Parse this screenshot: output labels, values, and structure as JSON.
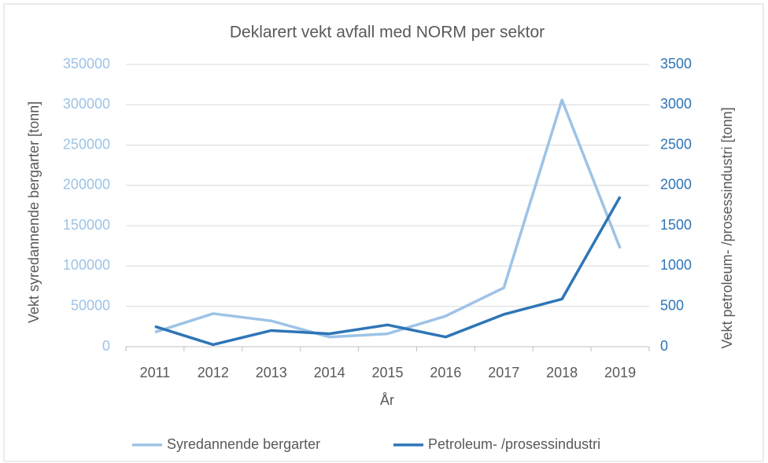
{
  "chart_data": {
    "type": "line",
    "title": "Deklarert vekt avfall med NORM per sektor",
    "x_label": "År",
    "y_label": "Vekt syredannende bergarter [tonn]",
    "y2_label": "Vekt petroleum- /prosessindustri [tonn]",
    "categories": [
      "2011",
      "2012",
      "2013",
      "2014",
      "2015",
      "2016",
      "2017",
      "2018",
      "2019"
    ],
    "series": [
      {
        "name": "Syredannende bergarter",
        "color": "#9dc3e6",
        "values": [
          18000,
          41000,
          32000,
          12000,
          16000,
          38000,
          73000,
          306000,
          122000
        ]
      },
      {
        "name": "Petroleum- /prosessindustri",
        "color": "#2e75b6",
        "axis": "y2",
        "values": [
          250,
          25,
          200,
          160,
          270,
          120,
          400,
          590,
          1860
        ]
      }
    ],
    "ylim": [
      0,
      350000
    ],
    "yticks": [
      0,
      50000,
      100000,
      150000,
      200000,
      250000,
      300000,
      350000
    ],
    "y2lim": [
      0,
      3500
    ],
    "y2ticks": [
      0,
      500,
      1000,
      1500,
      2000,
      2500,
      3000,
      3500
    ],
    "grid": true,
    "legend": "bottom"
  }
}
